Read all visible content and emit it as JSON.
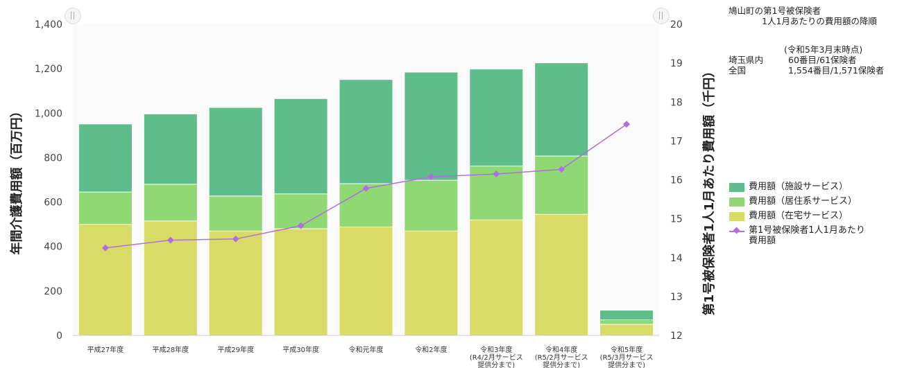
{
  "info": {
    "line1": "鳩山町の第1号被保険者",
    "line2": "1人1月あたりの費用額の降順",
    "asof": "(令和5年3月末時点)",
    "rows": [
      {
        "k": "埼玉県内",
        "v": "60番目/61保険者"
      },
      {
        "k": "全国",
        "v": "1,554番目/1,571保険者"
      }
    ]
  },
  "legend": {
    "items": [
      {
        "label": "費用額（施設サービス）",
        "color": "#5fbd8c"
      },
      {
        "label": "費用額（居住系サービス）",
        "color": "#8fd873"
      },
      {
        "label": "費用額（在宅サービス）",
        "color": "#d8db66"
      },
      {
        "label": "第1号被保険者1人1月あたり費用額",
        "color": "#b06fe0"
      }
    ]
  },
  "chart_data": {
    "type": "bar",
    "stacked": true,
    "categories": [
      [
        "平成27年度"
      ],
      [
        "平成28年度"
      ],
      [
        "平成29年度"
      ],
      [
        "平成30年度"
      ],
      [
        "令和元年度"
      ],
      [
        "令和2年度"
      ],
      [
        "令和3年度",
        "(R4/2月サービス",
        "提供分まで)"
      ],
      [
        "令和4年度",
        "(R5/2月サービス",
        "提供分まで)"
      ],
      [
        "令和5年度",
        "(R5/3月サービス",
        "提供分まで)"
      ]
    ],
    "series": [
      {
        "name": "費用額（在宅サービス）",
        "color": "#d8db66",
        "values": [
          500,
          515,
          470,
          480,
          488,
          470,
          520,
          545,
          50
        ]
      },
      {
        "name": "費用額（居住系サービス）",
        "color": "#8fd873",
        "values": [
          145,
          165,
          157,
          157,
          195,
          228,
          242,
          262,
          20
        ]
      },
      {
        "name": "費用額（施設サービス）",
        "color": "#5fbd8c",
        "values": [
          305,
          315,
          397,
          427,
          467,
          485,
          435,
          418,
          42
        ]
      }
    ],
    "line_series": {
      "name": "第1号被保険者1人1月あたり費用額",
      "color": "#b06fe0",
      "axis": "right",
      "values": [
        14.25,
        14.45,
        14.48,
        14.82,
        15.78,
        16.08,
        16.15,
        16.27,
        17.43
      ]
    },
    "y_left": {
      "label": "年間介護費用額（百万円）",
      "min": 0,
      "max": 1400,
      "ticks": [
        "0",
        "200",
        "400",
        "600",
        "800",
        "1,000",
        "1,200",
        "1,400"
      ]
    },
    "y_right": {
      "label": "第1号被保険者1人1月あたり費用額（千円）",
      "min": 12,
      "max": 20,
      "ticks": [
        "12",
        "13",
        "14",
        "15",
        "16",
        "17",
        "18",
        "19",
        "20"
      ]
    },
    "legend_position": "right",
    "grid": false
  }
}
